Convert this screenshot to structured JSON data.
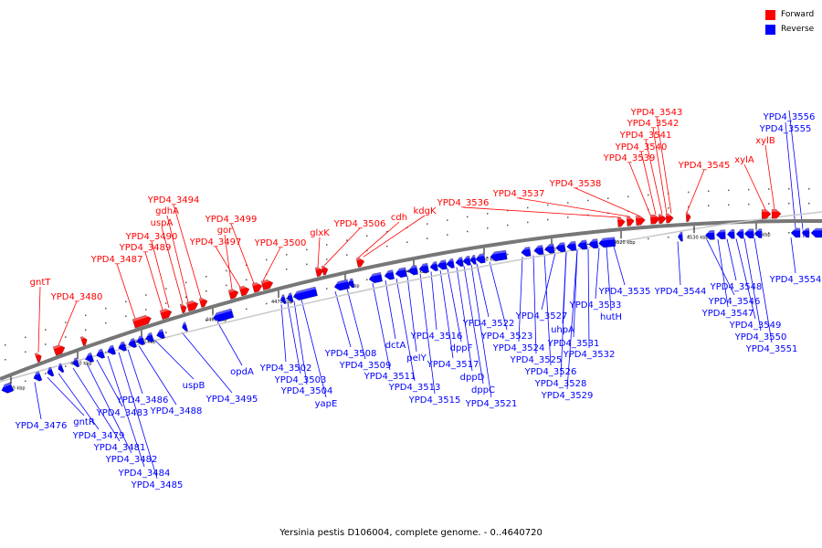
{
  "title": "Yersinia pestis D106004, complete genome. - 0..4640720",
  "legend": [
    {
      "label": "Forward",
      "color": "#ff0000"
    },
    {
      "label": "Reverse",
      "color": "#0000ff"
    }
  ],
  "colors": {
    "forward": "#ff0000",
    "reverse": "#0000ff",
    "backbone": "#777777"
  },
  "ticks": [
    "4430 kbp",
    "4440 kbp",
    "4450 kbp",
    "4460 kbp",
    "4470 kbp",
    "4480 kbp",
    "4490 kbp",
    "4500 kbp",
    "4510 kbp",
    "4520 kbp",
    "4530 kbp",
    "4540 kbp"
  ],
  "forward_labels": [
    "gntT",
    "YPD4_3480",
    "YPD4_3487",
    "YPD4_3489",
    "YPD4_3490",
    "uspA",
    "gdhA",
    "YPD4_3494",
    "gor",
    "YPD4_3497",
    "YPD4_3499",
    "YPD4_3500",
    "glxK",
    "YPD4_3506",
    "cdh",
    "kdgK",
    "YPD4_3536",
    "YPD4_3537",
    "YPD4_3538",
    "YPD4_3539",
    "YPD4_3540",
    "YPD4_3541",
    "YPD4_3542",
    "YPD4_3543",
    "YPD4_3545",
    "xylA",
    "xylB"
  ],
  "reverse_labels": [
    "YPD4_3476",
    "gntR",
    "YPD4_3479",
    "YPD4_3481",
    "YPD4_3482",
    "YPD4_3483",
    "YPD4_3484",
    "YPD4_3485",
    "YPD4_3486",
    "YPD4_3488",
    "uspB",
    "YPD4_3495",
    "opdA",
    "YPD4_3502",
    "YPD4_3503",
    "YPD4_3504",
    "yapE",
    "YPD4_3508",
    "YPD4_3509",
    "YPD4_3511",
    "dctA",
    "YPD4_3513",
    "pelY",
    "YPD4_3515",
    "YPD4_3516",
    "YPD4_3517",
    "dppF",
    "dppD",
    "dppC",
    "YPD4_3521",
    "YPD4_3522",
    "YPD4_3523",
    "YPD4_3524",
    "YPD4_3525",
    "YPD4_3526",
    "YPD4_3527",
    "YPD4_3528",
    "YPD4_3529",
    "uhpA",
    "YPD4_3531",
    "YPD4_3532",
    "YPD4_3533",
    "hutH",
    "YPD4_3535",
    "YPD4_3544",
    "YPD4_3546",
    "YPD4_3547",
    "YPD4_3548",
    "YPD4_3549",
    "YPD4_3550",
    "YPD4_3551",
    "YPD4_3554",
    "YPD4_3555",
    "YPD4_3556"
  ]
}
